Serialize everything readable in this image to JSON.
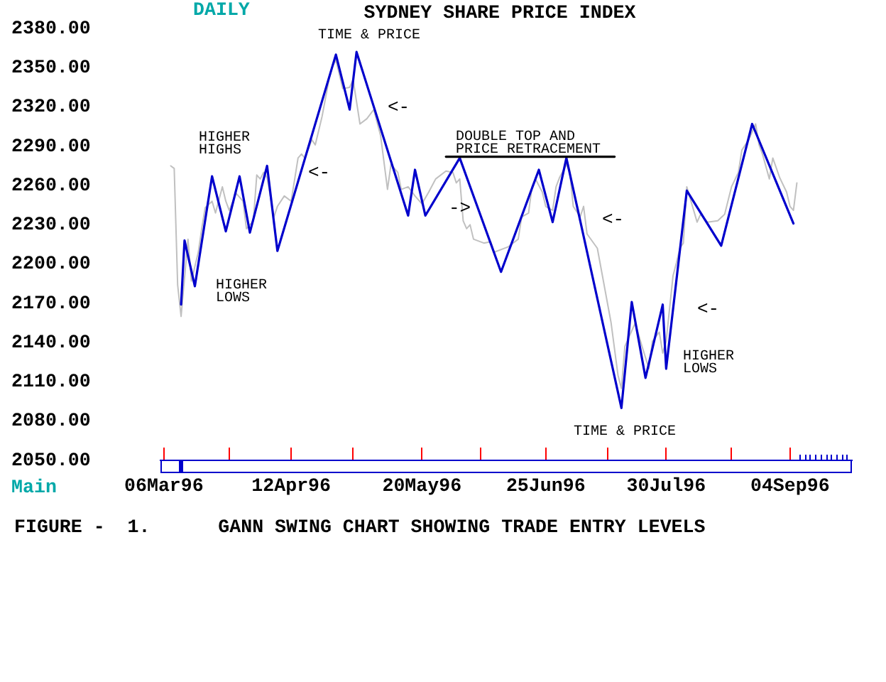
{
  "chart_data": {
    "type": "line",
    "title": "SYDNEY SHARE PRICE INDEX",
    "subtitle": "DAILY",
    "xlim": [
      "1996-03-05",
      "1996-09-22"
    ],
    "xticks": [
      {
        "value": "1996-03-06",
        "label": "06Mar96"
      },
      {
        "value": "1996-03-25",
        "label": null
      },
      {
        "value": "1996-04-12",
        "label": "12Apr96"
      },
      {
        "value": "1996-04-30",
        "label": null
      },
      {
        "value": "1996-05-20",
        "label": "20May96"
      },
      {
        "value": "1996-06-06",
        "label": null
      },
      {
        "value": "1996-06-25",
        "label": "25Jun96"
      },
      {
        "value": "1996-07-13",
        "label": null
      },
      {
        "value": "1996-07-30",
        "label": "30Jul96"
      },
      {
        "value": "1996-08-18",
        "label": null
      },
      {
        "value": "1996-09-04",
        "label": "04Sep96"
      }
    ],
    "ylim": [
      2050,
      2380
    ],
    "yticks": [
      {
        "value": 2050,
        "label": "2050.00"
      },
      {
        "value": 2080,
        "label": "2080.00"
      },
      {
        "value": 2110,
        "label": "2110.00"
      },
      {
        "value": 2140,
        "label": "2140.00"
      },
      {
        "value": 2170,
        "label": "2170.00"
      },
      {
        "value": 2200,
        "label": "2200.00"
      },
      {
        "value": 2230,
        "label": "2230.00"
      },
      {
        "value": 2260,
        "label": "2260.00"
      },
      {
        "value": 2290,
        "label": "2290.00"
      },
      {
        "value": 2320,
        "label": "2320.00"
      },
      {
        "value": 2350,
        "label": "2350.00"
      },
      {
        "value": 2380,
        "label": "2380.00"
      }
    ],
    "series": [
      {
        "color": "#c0c0c0",
        "x": [
          "1996-03-08",
          "1996-03-09",
          "1996-03-10",
          "1996-03-11",
          "1996-03-13",
          "1996-03-14",
          "1996-03-16",
          "1996-03-17",
          "1996-03-18",
          "1996-03-20",
          "1996-03-21",
          "1996-03-23",
          "1996-03-24",
          "1996-03-25",
          "1996-03-27",
          "1996-03-29",
          "1996-03-30",
          "1996-04-01",
          "1996-04-02",
          "1996-04-03",
          "1996-04-04",
          "1996-04-05",
          "1996-04-07",
          "1996-04-08",
          "1996-04-10",
          "1996-04-12",
          "1996-04-14",
          "1996-04-15",
          "1996-04-16",
          "1996-04-18",
          "1996-04-19",
          "1996-04-21",
          "1996-04-23",
          "1996-04-24",
          "1996-04-25",
          "1996-04-27",
          "1996-04-29",
          "1996-04-30",
          "1996-05-02",
          "1996-05-04",
          "1996-05-06",
          "1996-05-08",
          "1996-05-10",
          "1996-05-11",
          "1996-05-13",
          "1996-05-14",
          "1996-05-16",
          "1996-05-18",
          "1996-05-20",
          "1996-05-22",
          "1996-05-24",
          "1996-05-27",
          "1996-05-29",
          "1996-05-30",
          "1996-05-31",
          "1996-06-01",
          "1996-06-02",
          "1996-06-03",
          "1996-06-04",
          "1996-06-07",
          "1996-06-09",
          "1996-06-10",
          "1996-06-14",
          "1996-06-17",
          "1996-06-18",
          "1996-06-20",
          "1996-06-21",
          "1996-06-22",
          "1996-06-24",
          "1996-06-25",
          "1996-06-27",
          "1996-06-28",
          "1996-06-29",
          "1996-07-01",
          "1996-07-02",
          "1996-07-03",
          "1996-07-05",
          "1996-07-06",
          "1996-07-07",
          "1996-07-10",
          "1996-07-14",
          "1996-07-16",
          "1996-07-17",
          "1996-07-18",
          "1996-07-21",
          "1996-07-23",
          "1996-07-25",
          "1996-07-26",
          "1996-07-28",
          "1996-07-29",
          "1996-07-30",
          "1996-08-01",
          "1996-08-02",
          "1996-08-03",
          "1996-08-04",
          "1996-08-05",
          "1996-08-07",
          "1996-08-08",
          "1996-08-09",
          "1996-08-11",
          "1996-08-14",
          "1996-08-16",
          "1996-08-18",
          "1996-08-20",
          "1996-08-21",
          "1996-08-23",
          "1996-08-25",
          "1996-08-26",
          "1996-08-27",
          "1996-08-29",
          "1996-08-30",
          "1996-09-01",
          "1996-09-03",
          "1996-09-04",
          "1996-09-05",
          "1996-09-06"
        ],
        "values": [
          2275,
          2273,
          2184,
          2160,
          2219,
          2187,
          2209,
          2227,
          2243,
          2248,
          2239,
          2259,
          2248,
          2241,
          2254,
          2248,
          2227,
          2233,
          2268,
          2265,
          2270,
          2266,
          2236,
          2244,
          2252,
          2248,
          2281,
          2284,
          2281,
          2295,
          2291,
          2313,
          2341,
          2351,
          2356,
          2334,
          2335,
          2341,
          2307,
          2311,
          2318,
          2298,
          2257,
          2276,
          2270,
          2257,
          2259,
          2252,
          2246,
          2255,
          2265,
          2271,
          2270,
          2262,
          2265,
          2233,
          2227,
          2230,
          2219,
          2216,
          2217,
          2209,
          2213,
          2219,
          2236,
          2239,
          2259,
          2265,
          2255,
          2244,
          2241,
          2259,
          2266,
          2276,
          2270,
          2244,
          2236,
          2244,
          2223,
          2212,
          2155,
          2115,
          2105,
          2137,
          2155,
          2137,
          2120,
          2141,
          2148,
          2132,
          2141,
          2191,
          2201,
          2212,
          2216,
          2259,
          2241,
          2232,
          2238,
          2232,
          2233,
          2238,
          2259,
          2270,
          2287,
          2295,
          2307,
          2291,
          2284,
          2265,
          2281,
          2266,
          2255,
          2244,
          2241,
          2262
        ]
      },
      {
        "color": "#0000cc",
        "x": [
          "1996-03-11",
          "1996-03-12",
          "1996-03-15",
          "1996-03-20",
          "1996-03-24",
          "1996-03-28",
          "1996-03-31",
          "1996-04-05",
          "1996-04-08",
          "1996-04-25",
          "1996-04-29",
          "1996-05-01",
          "1996-05-16",
          "1996-05-18",
          "1996-05-21",
          "1996-05-31",
          "1996-06-12",
          "1996-06-23",
          "1996-06-27",
          "1996-07-01",
          "1996-07-17",
          "1996-07-20",
          "1996-07-24",
          "1996-07-29",
          "1996-07-30",
          "1996-08-05",
          "1996-08-15",
          "1996-08-24",
          "1996-09-05"
        ],
        "values": [
          2169,
          2218,
          2183,
          2267,
          2225,
          2267,
          2224,
          2275,
          2210,
          2360,
          2318,
          2362,
          2237,
          2272,
          2237,
          2281,
          2194,
          2272,
          2232,
          2281,
          2090,
          2171,
          2113,
          2169,
          2120,
          2256,
          2214,
          2307,
          2231
        ]
      },
      {
        "color": "#000000",
        "x": [
          "1996-05-27",
          "1996-07-15"
        ],
        "values": [
          2282,
          2282
        ]
      }
    ],
    "annotations": [
      "TIME & PRICE",
      "HIGHER\nHIGHS",
      "HIGHER\nLOWS",
      "DOUBLE TOP AND\nPRICE RETRACEMENT",
      "TIME & PRICE",
      "HIGHER\nLOWS",
      "<-",
      "<-",
      "->",
      "<-",
      "<-",
      "Main",
      "FIGURE -  1.      GANN SWING CHART SHOWING TRADE ENTRY LEVELS"
    ]
  }
}
